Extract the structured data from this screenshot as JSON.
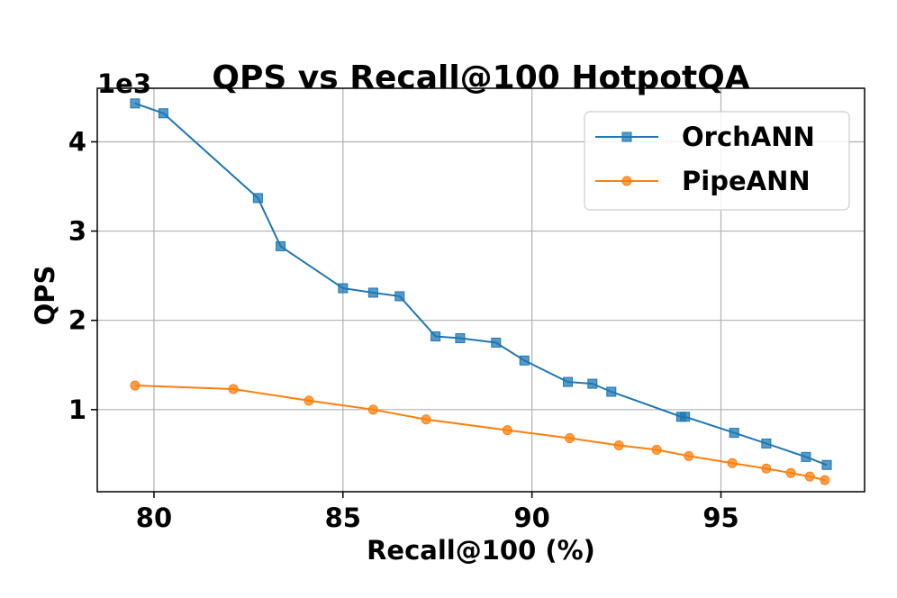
{
  "chart_data": {
    "type": "line",
    "title": "QPS vs Recall@100 HotpotQA",
    "xlabel": "Recall@100 (%)",
    "ylabel": "QPS",
    "y_offset_label": "1e3",
    "xlim": [
      78.5,
      98.8
    ],
    "ylim": [
      0.08,
      4.6
    ],
    "xticks": [
      80,
      85,
      90,
      95
    ],
    "xtick_labels": [
      "80",
      "85",
      "90",
      "95"
    ],
    "yticks": [
      1,
      2,
      3,
      4
    ],
    "ytick_labels": [
      "1",
      "2",
      "3",
      "4"
    ],
    "grid": true,
    "legend_position": "top-right",
    "series": [
      {
        "name": "OrchANN",
        "color": "#1f77b4",
        "marker": "square",
        "x": [
          79.5,
          80.25,
          82.75,
          83.35,
          85.0,
          85.8,
          86.5,
          87.45,
          88.1,
          89.05,
          89.8,
          90.95,
          91.6,
          92.1,
          93.95,
          94.05,
          95.35,
          96.2,
          97.25,
          97.8
        ],
        "y": [
          4.43,
          4.32,
          3.37,
          2.83,
          2.36,
          2.31,
          2.27,
          1.82,
          1.8,
          1.75,
          1.55,
          1.31,
          1.29,
          1.2,
          0.92,
          0.92,
          0.74,
          0.62,
          0.47,
          0.38
        ]
      },
      {
        "name": "PipeANN",
        "color": "#ff7f0e",
        "marker": "circle",
        "x": [
          79.5,
          82.1,
          84.1,
          85.8,
          87.2,
          89.35,
          91.0,
          92.3,
          93.3,
          94.15,
          95.3,
          96.2,
          96.85,
          97.35,
          97.75
        ],
        "y": [
          1.27,
          1.23,
          1.1,
          1.0,
          0.89,
          0.77,
          0.68,
          0.6,
          0.55,
          0.48,
          0.4,
          0.34,
          0.29,
          0.25,
          0.21
        ]
      }
    ]
  }
}
